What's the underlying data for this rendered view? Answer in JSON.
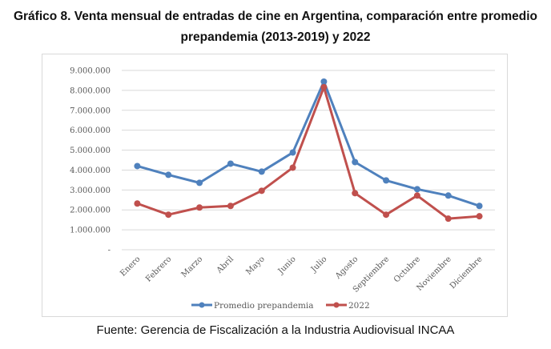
{
  "title_line1": "Gráfico 8. Venta mensual de entradas de cine en Argentina, comparación entre promedio",
  "title_line2": "prepandemia (2013-2019) y 2022",
  "source": "Fuente: Gerencia de Fiscalización a la Industria Audiovisual INCAA",
  "chart_data": {
    "type": "line",
    "title": "Gráfico 8. Venta mensual de entradas de cine en Argentina, comparación entre promedio prepandemia (2013-2019) y 2022",
    "xlabel": "",
    "ylabel": "",
    "categories": [
      "Enero",
      "Febrero",
      "Marzo",
      "Abril",
      "Mayo",
      "Junio",
      "Julio",
      "Agosto",
      "Septiembre",
      "Octubre",
      "Noviembre",
      "Diciembre"
    ],
    "series": [
      {
        "name": "Promedio prepandemia",
        "color": "#4F81BD",
        "values": [
          4200000,
          3760000,
          3360000,
          4320000,
          3920000,
          4880000,
          8440000,
          4400000,
          3480000,
          3040000,
          2720000,
          2200000
        ]
      },
      {
        "name": "2022",
        "color": "#C0504D",
        "values": [
          2320000,
          1760000,
          2120000,
          2200000,
          2960000,
          4120000,
          8160000,
          2840000,
          1760000,
          2720000,
          1560000,
          1680000
        ]
      }
    ],
    "ylim": [
      0,
      9000000
    ],
    "yticks": [
      0,
      1000000,
      2000000,
      3000000,
      4000000,
      5000000,
      6000000,
      7000000,
      8000000,
      9000000
    ],
    "ytick_labels": [
      "-",
      "1.000.000",
      "2.000.000",
      "3.000.000",
      "4.000.000",
      "5.000.000",
      "6.000.000",
      "7.000.000",
      "8.000.000",
      "9.000.000"
    ],
    "grid": true,
    "legend_position": "bottom",
    "gridline_color": "#D9D9D9"
  }
}
